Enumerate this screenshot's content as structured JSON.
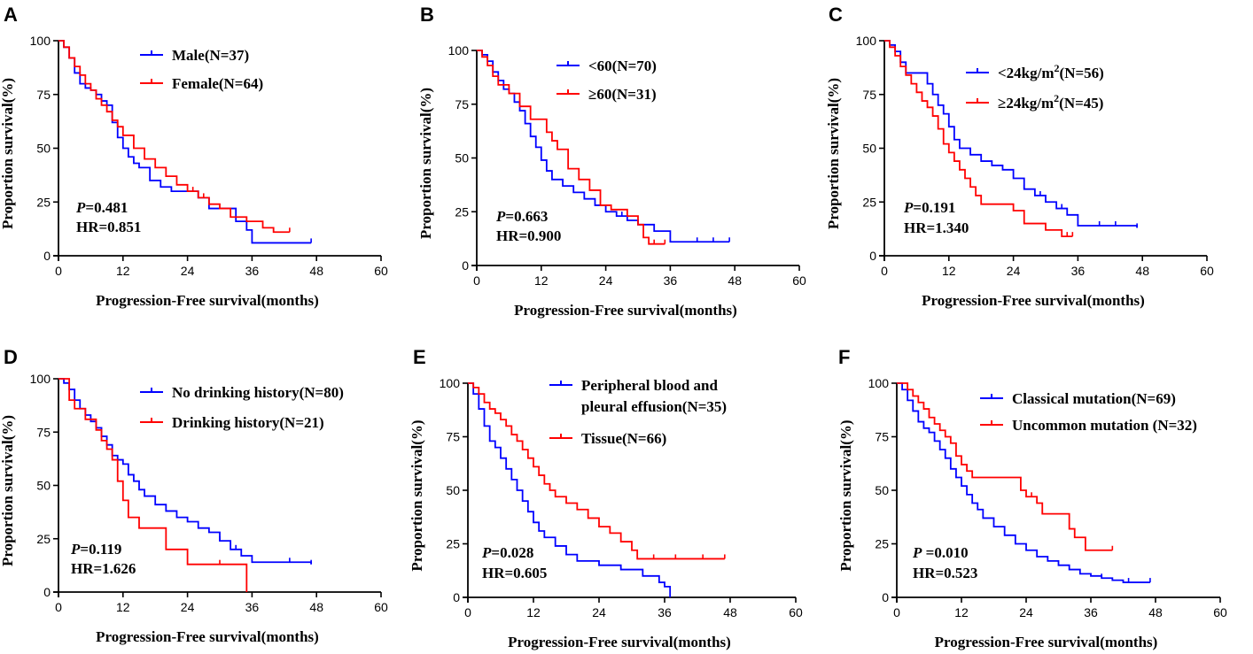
{
  "chart_data": [
    {
      "id": "A",
      "type": "line",
      "subtype": "kaplan-meier",
      "xlabel": "Progression-Free survival(months)",
      "ylabel": "Proportion survival(%)",
      "xlim": [
        0,
        60
      ],
      "ylim": [
        0,
        100
      ],
      "xticks": [
        0,
        12,
        24,
        36,
        48,
        60
      ],
      "yticks": [
        0,
        25,
        50,
        75,
        100
      ],
      "p_label": "P",
      "p_value": "=0.481",
      "hr": "HR=0.851",
      "series": [
        {
          "name": "Male(N=37)",
          "color": "#0000ff",
          "x": [
            0,
            1,
            2,
            3,
            4,
            5,
            6,
            7,
            8,
            9,
            10,
            11,
            12,
            13,
            14,
            15,
            17,
            19,
            21,
            24,
            26,
            28,
            30,
            33,
            35,
            36,
            47
          ],
          "y": [
            100,
            97,
            92,
            85,
            80,
            78,
            77,
            75,
            72,
            70,
            62,
            55,
            50,
            46,
            43,
            41,
            35,
            32,
            30,
            30,
            27,
            22,
            22,
            16,
            12,
            6,
            6
          ],
          "censor_x": [
            47
          ]
        },
        {
          "name": "Female(N=64)",
          "color": "#ff0000",
          "x": [
            0,
            1,
            2,
            3,
            4,
            5,
            6,
            7,
            8,
            9,
            10,
            11,
            12,
            14,
            16,
            18,
            20,
            22,
            24,
            26,
            28,
            30,
            32,
            35,
            38,
            40,
            43
          ],
          "y": [
            100,
            97,
            92,
            88,
            84,
            80,
            77,
            73,
            70,
            67,
            63,
            60,
            56,
            50,
            45,
            41,
            37,
            33,
            30,
            27,
            24,
            22,
            18,
            16,
            13,
            11,
            11
          ],
          "censor_x": [
            25,
            27,
            43
          ]
        }
      ]
    },
    {
      "id": "B",
      "type": "line",
      "subtype": "kaplan-meier",
      "xlabel": "Progression-Free survival(months)",
      "ylabel": "Proportion survival(%)",
      "xlim": [
        0,
        60
      ],
      "ylim": [
        0,
        100
      ],
      "xticks": [
        0,
        12,
        24,
        36,
        48,
        60
      ],
      "yticks": [
        0,
        25,
        50,
        75,
        100
      ],
      "p_label": "P",
      "p_value": "=0.663",
      "hr": "HR=0.900",
      "series": [
        {
          "name": "<60(N=70)",
          "color": "#0000ff",
          "x": [
            0,
            1,
            2,
            3,
            4,
            5,
            6,
            7,
            8,
            9,
            10,
            11,
            12,
            13,
            14,
            16,
            18,
            20,
            22,
            24,
            26,
            28,
            30,
            33,
            36,
            47
          ],
          "y": [
            100,
            98,
            95,
            90,
            86,
            82,
            80,
            76,
            72,
            66,
            60,
            55,
            49,
            44,
            40,
            37,
            34,
            31,
            28,
            25,
            23,
            21,
            19,
            16,
            11,
            11
          ],
          "censor_x": [
            27,
            41,
            44,
            47
          ]
        },
        {
          "name": "≥60(N=31)",
          "color": "#ff0000",
          "x": [
            0,
            1,
            2,
            3,
            4,
            6,
            8,
            10,
            12,
            13,
            14,
            15,
            17,
            19,
            21,
            23,
            25,
            28,
            30,
            31,
            32,
            35
          ],
          "y": [
            100,
            97,
            93,
            88,
            84,
            80,
            74,
            68,
            68,
            62,
            58,
            54,
            45,
            40,
            35,
            28,
            26,
            23,
            19,
            13,
            10,
            10
          ],
          "censor_x": [
            33,
            35
          ]
        }
      ]
    },
    {
      "id": "C",
      "type": "line",
      "subtype": "kaplan-meier",
      "xlabel": "Progression-Free survival(months)",
      "ylabel": "Proportion survival(%)",
      "xlim": [
        0,
        60
      ],
      "ylim": [
        0,
        100
      ],
      "xticks": [
        0,
        12,
        24,
        36,
        48,
        60
      ],
      "yticks": [
        0,
        25,
        50,
        75,
        100
      ],
      "p_label": "P",
      "p_value": "=0.191",
      "hr": "HR=1.340",
      "series": [
        {
          "name": "<24kg/m2(N=56)",
          "name_base": "<24kg/m",
          "name_sup": "2",
          "name_tail": "(N=56)",
          "color": "#0000ff",
          "x": [
            0,
            1,
            2,
            3,
            4,
            6,
            8,
            9,
            10,
            11,
            12,
            13,
            14,
            16,
            18,
            20,
            22,
            24,
            26,
            28,
            30,
            32,
            34,
            36,
            47
          ],
          "y": [
            100,
            98,
            95,
            90,
            85,
            85,
            80,
            75,
            70,
            66,
            60,
            54,
            50,
            47,
            44,
            42,
            40,
            36,
            31,
            28,
            25,
            22,
            19,
            14,
            13
          ],
          "censor_x": [
            26,
            29,
            33,
            40,
            43,
            47
          ]
        },
        {
          "name": "≥24kg/m2(N=45)",
          "name_base": "≥24kg/m",
          "name_sup": "2",
          "name_tail": "(N=45)",
          "color": "#ff0000",
          "x": [
            0,
            1,
            2,
            3,
            4,
            5,
            6,
            7,
            8,
            9,
            10,
            11,
            12,
            13,
            14,
            15,
            16,
            17,
            18,
            24,
            26,
            30,
            33,
            35
          ],
          "y": [
            100,
            97,
            93,
            88,
            84,
            80,
            76,
            72,
            69,
            65,
            59,
            52,
            48,
            44,
            40,
            36,
            32,
            28,
            24,
            21,
            15,
            12,
            9,
            9
          ],
          "censor_x": [
            34,
            35
          ]
        }
      ]
    },
    {
      "id": "D",
      "type": "line",
      "subtype": "kaplan-meier",
      "xlabel": "Progression-Free survival(months)",
      "ylabel": "Proportion survival(%)",
      "xlim": [
        0,
        60
      ],
      "ylim": [
        0,
        100
      ],
      "xticks": [
        0,
        12,
        24,
        36,
        48,
        60
      ],
      "yticks": [
        0,
        25,
        50,
        75,
        100
      ],
      "p_label": "P",
      "p_value": "=0.119",
      "hr": "HR=1.626",
      "series": [
        {
          "name": "No drinking history(N=80)",
          "color": "#0000ff",
          "x": [
            0,
            1,
            2,
            3,
            4,
            5,
            6,
            7,
            8,
            9,
            10,
            11,
            12,
            13,
            14,
            15,
            16,
            18,
            20,
            22,
            24,
            26,
            28,
            30,
            32,
            34,
            36,
            47
          ],
          "y": [
            100,
            98,
            95,
            90,
            86,
            83,
            80,
            77,
            73,
            69,
            64,
            62,
            60,
            55,
            52,
            48,
            45,
            41,
            38,
            35,
            33,
            30,
            28,
            24,
            20,
            17,
            14,
            13
          ],
          "censor_x": [
            30,
            33,
            43,
            47
          ]
        },
        {
          "name": "Drinking history(N=21)",
          "color": "#ff0000",
          "x": [
            0,
            1,
            2,
            3,
            4,
            5,
            6,
            7,
            8,
            9,
            10,
            11,
            12,
            13,
            15,
            17,
            20,
            24,
            30,
            35
          ],
          "y": [
            100,
            100,
            90,
            86,
            86,
            81,
            81,
            76,
            71,
            67,
            62,
            52,
            43,
            35,
            30,
            30,
            20,
            13,
            13,
            0
          ],
          "censor_x": [
            30
          ]
        }
      ]
    },
    {
      "id": "E",
      "type": "line",
      "subtype": "kaplan-meier",
      "xlabel": "Progression-Free survival(months)",
      "ylabel": "Proportion survival(%)",
      "xlim": [
        0,
        60
      ],
      "ylim": [
        0,
        100
      ],
      "xticks": [
        0,
        12,
        24,
        36,
        48,
        60
      ],
      "yticks": [
        0,
        25,
        50,
        75,
        100
      ],
      "p_label": "P",
      "p_value": "=0.028",
      "hr": "HR=0.605",
      "series": [
        {
          "name": "Peripheral blood and pleural effusion(N=35)",
          "name_line1": "Peripheral blood and",
          "name_line2": " pleural effusion(N=35)",
          "color": "#0000ff",
          "x": [
            0,
            1,
            2,
            3,
            4,
            5,
            6,
            7,
            8,
            9,
            10,
            11,
            12,
            13,
            14,
            16,
            18,
            20,
            24,
            28,
            32,
            35,
            36,
            37
          ],
          "y": [
            100,
            95,
            88,
            80,
            73,
            70,
            65,
            60,
            55,
            50,
            45,
            40,
            35,
            31,
            28,
            24,
            20,
            17,
            15,
            13,
            10,
            7,
            5,
            0
          ],
          "censor_x": []
        },
        {
          "name": "Tissue(N=66)",
          "color": "#ff0000",
          "x": [
            0,
            1,
            2,
            3,
            4,
            5,
            6,
            7,
            8,
            9,
            10,
            11,
            12,
            13,
            14,
            15,
            16,
            18,
            20,
            22,
            24,
            26,
            28,
            30,
            31,
            47
          ],
          "y": [
            100,
            98,
            95,
            91,
            88,
            86,
            83,
            80,
            76,
            73,
            69,
            65,
            61,
            57,
            53,
            50,
            47,
            44,
            41,
            37,
            33,
            30,
            26,
            22,
            18,
            18
          ],
          "censor_x": [
            34,
            38,
            43,
            47
          ]
        }
      ]
    },
    {
      "id": "F",
      "type": "line",
      "subtype": "kaplan-meier",
      "xlabel": "Progression-Free survival(months)",
      "ylabel": "Proportion survival(%)",
      "xlim": [
        0,
        60
      ],
      "ylim": [
        0,
        100
      ],
      "xticks": [
        0,
        12,
        24,
        36,
        48,
        60
      ],
      "yticks": [
        0,
        25,
        50,
        75,
        100
      ],
      "p_label": "P",
      "p_value": " =0.010",
      "hr": "HR=0.523",
      "series": [
        {
          "name": "Classical mutation(N=69)",
          "color": "#0000ff",
          "x": [
            0,
            1,
            2,
            3,
            4,
            5,
            6,
            7,
            8,
            9,
            10,
            11,
            12,
            13,
            14,
            15,
            16,
            18,
            20,
            22,
            24,
            26,
            28,
            30,
            32,
            34,
            36,
            38,
            40,
            42,
            47
          ],
          "y": [
            100,
            97,
            92,
            87,
            82,
            79,
            77,
            73,
            69,
            65,
            60,
            56,
            52,
            48,
            44,
            41,
            37,
            33,
            29,
            25,
            22,
            19,
            17,
            15,
            13,
            11,
            10,
            9,
            8,
            7,
            7
          ],
          "censor_x": [
            38,
            43,
            47
          ]
        },
        {
          "name": "Uncommon mutation (N=32)",
          "color": "#ff0000",
          "x": [
            0,
            2,
            3,
            4,
            5,
            6,
            7,
            8,
            9,
            10,
            11,
            12,
            13,
            14,
            15,
            22,
            23,
            24,
            26,
            27,
            31,
            32,
            33,
            35,
            40
          ],
          "y": [
            100,
            97,
            94,
            91,
            88,
            84,
            81,
            78,
            75,
            72,
            66,
            62,
            59,
            56,
            56,
            56,
            50,
            47,
            44,
            39,
            39,
            32,
            28,
            22,
            22
          ],
          "censor_x": [
            25,
            26,
            27,
            40
          ]
        }
      ]
    }
  ]
}
